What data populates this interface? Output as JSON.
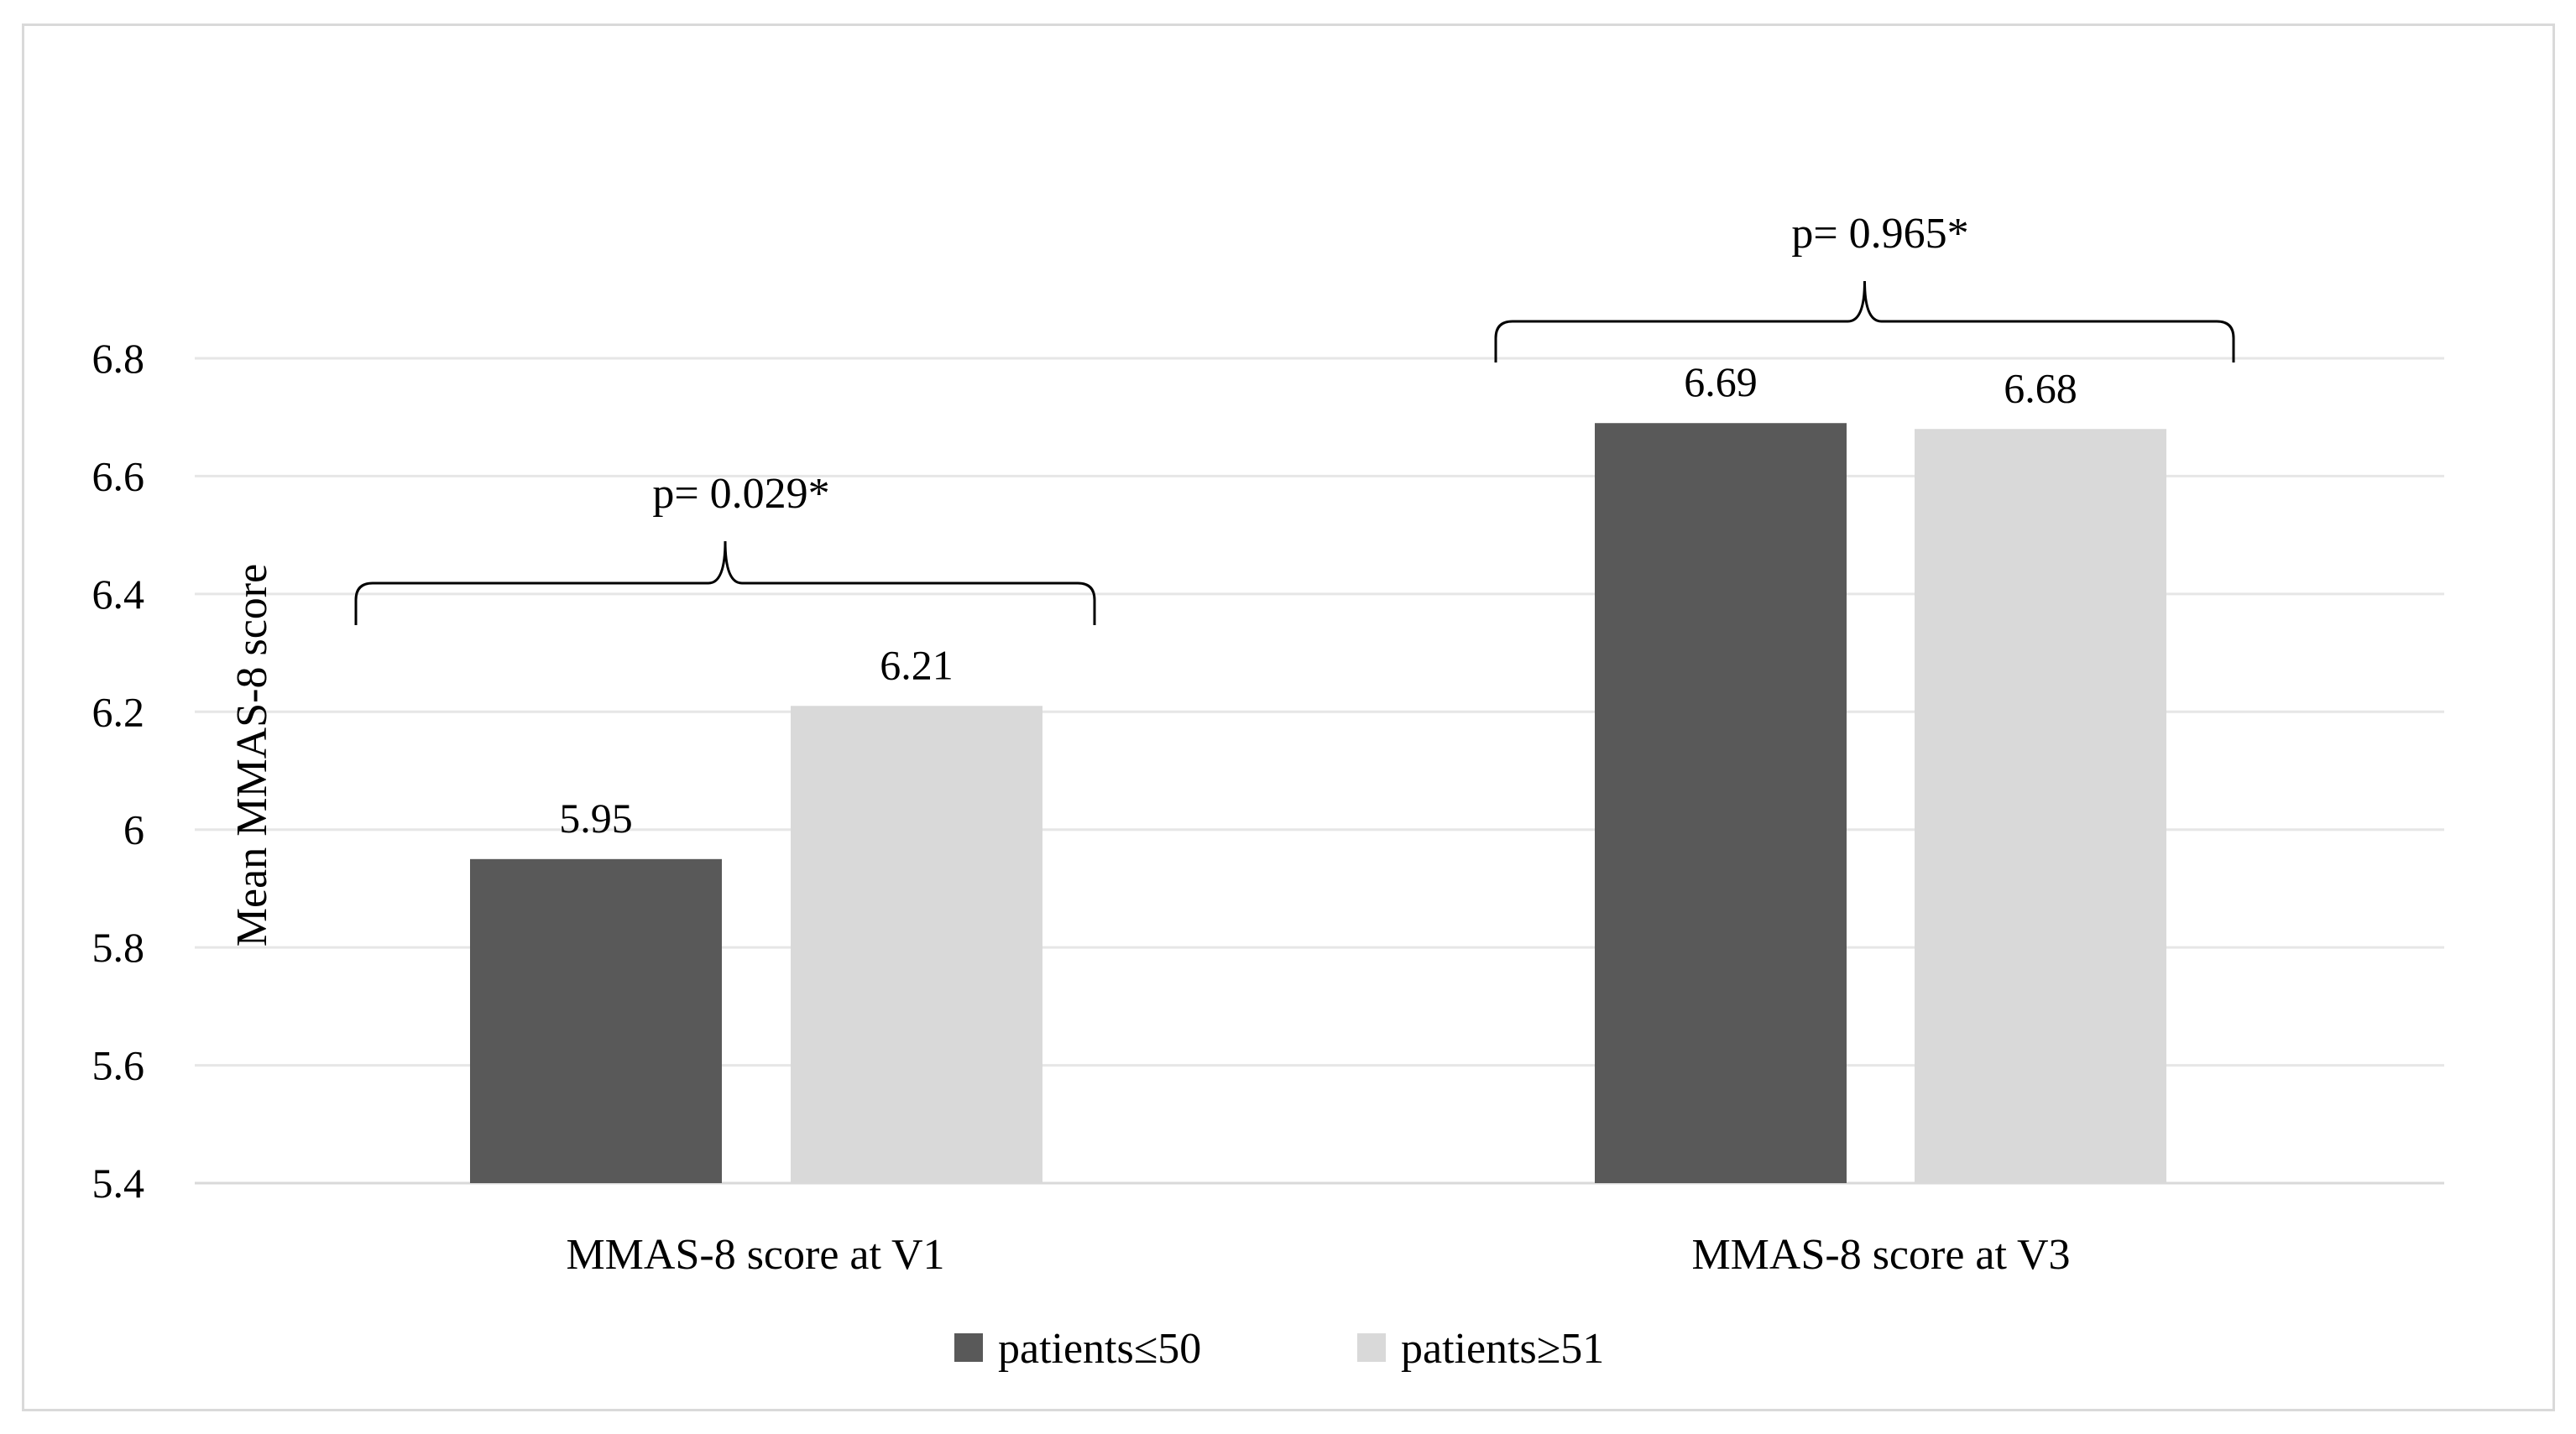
{
  "chart_data": {
    "type": "bar",
    "title": "",
    "xlabel": "",
    "ylabel": "Mean MMAS-8 score",
    "ylim": [
      5.4,
      6.8
    ],
    "yticks": [
      "5.4",
      "5.6",
      "5.8",
      "6",
      "6.2",
      "6.4",
      "6.6",
      "6.8"
    ],
    "grid": true,
    "legend_position": "bottom",
    "categories": [
      "MMAS-8 score at V1",
      "MMAS-8 score at V3"
    ],
    "series": [
      {
        "name": "patients≤50",
        "color": "#595959",
        "values": [
          5.95,
          6.69
        ],
        "labels": [
          "5.95",
          "6.69"
        ]
      },
      {
        "name": "patients≥51",
        "color": "#d9d9d9",
        "values": [
          6.21,
          6.68
        ],
        "labels": [
          "6.21",
          "6.68"
        ]
      }
    ],
    "annotations": [
      "p= 0.029*",
      "p= 0.965*"
    ]
  }
}
